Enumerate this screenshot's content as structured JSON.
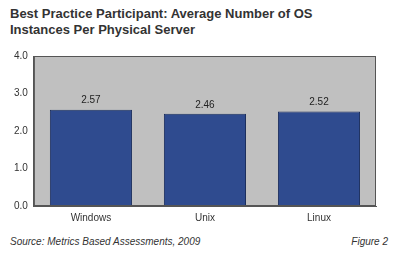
{
  "chart_data": {
    "type": "bar",
    "title": "Best Practice Participant: Average Number of OS Instances Per Physical Server",
    "categories": [
      "Windows",
      "Unix",
      "Linux"
    ],
    "values": [
      2.57,
      2.46,
      2.52
    ],
    "color": "#2f4b8f",
    "ylim": [
      0,
      4
    ],
    "yticks": [
      {
        "value": 0,
        "label": "0.0"
      },
      {
        "value": 1,
        "label": "1.0"
      },
      {
        "value": 2,
        "label": "2.0"
      },
      {
        "value": 3,
        "label": "3.0"
      },
      {
        "value": 4,
        "label": "4.0"
      }
    ],
    "grid": false,
    "data_labels": true,
    "annotations": [
      "Source: Metrics Based Assessments, 2009",
      "Figure 2"
    ]
  }
}
